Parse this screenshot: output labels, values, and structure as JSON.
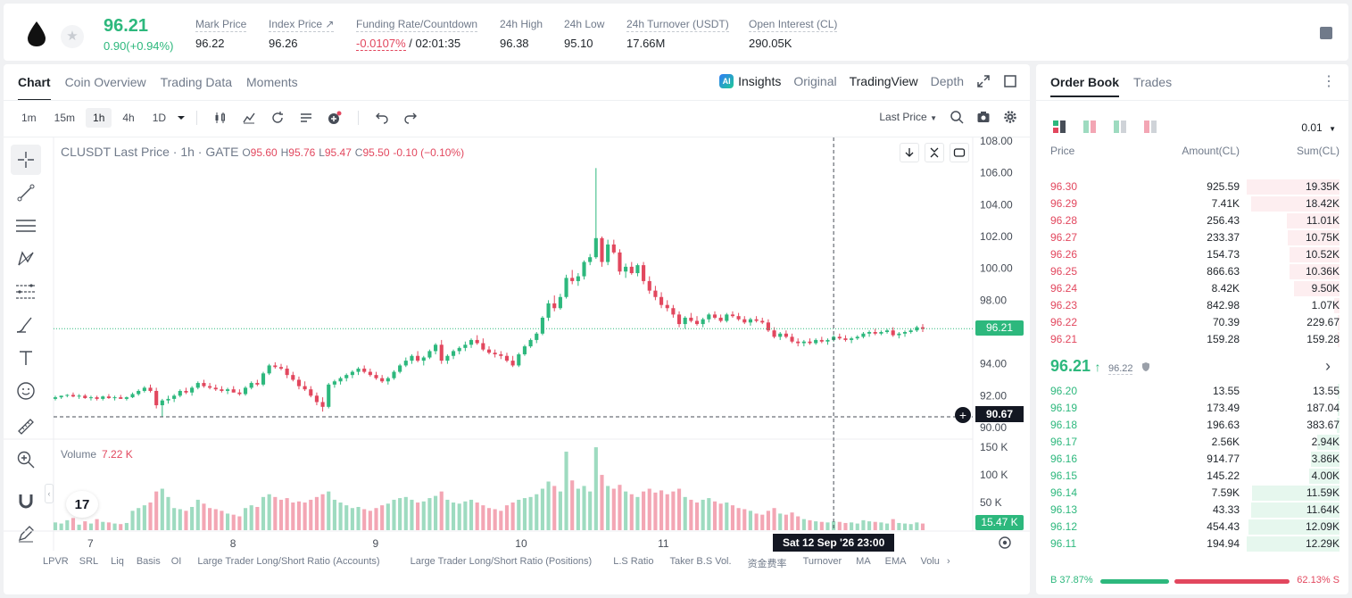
{
  "header": {
    "last_price": "96.21",
    "change": "0.90(+0.94%)",
    "stats": [
      {
        "label": "Mark Price",
        "value": "96.22"
      },
      {
        "label": "Index Price ↗",
        "value": "96.26"
      },
      {
        "label": "Funding Rate/Countdown",
        "value_neg": "-0.0107%",
        "value_rest": " / 02:01:35"
      },
      {
        "label": "24h High",
        "value": "96.38"
      },
      {
        "label": "24h Low",
        "value": "95.10"
      },
      {
        "label": "24h Turnover (USDT)",
        "value": "17.66M"
      },
      {
        "label": "Open Interest (CL)",
        "value": "290.05K"
      }
    ]
  },
  "chart_tabs": [
    "Chart",
    "Coin Overview",
    "Trading Data",
    "Moments"
  ],
  "view_tabs": {
    "insights": "Insights",
    "ai_badge": "AI",
    "original": "Original",
    "tradingview": "TradingView",
    "depth": "Depth"
  },
  "intervals": [
    "1m",
    "15m",
    "1h",
    "4h",
    "1D"
  ],
  "price_source": "Last Price",
  "symbol_line": {
    "title": "CLUSDT Last Price · 1h · GATE",
    "o_label": "O",
    "o": "95.60",
    "h_label": "H",
    "h": "95.76",
    "l_label": "L",
    "l": "95.47",
    "c_label": "C",
    "c": "95.50",
    "chg": "-0.10 (−0.10%)"
  },
  "volume_label": "Volume",
  "volume_value": "7.22 K",
  "tv_logo": "17",
  "crosshair": {
    "price": "90.67",
    "time": "Sat 12 Sep '26   23:00"
  },
  "current_price_tag": "96.21",
  "volume_tag": "15.47 K",
  "indicators": [
    "LPVR",
    "SRL",
    "Liq",
    "Basis",
    "OI",
    "Large Trader Long/Short Ratio (Accounts)",
    "Large Trader Long/Short Ratio (Positions)",
    "L.S Ratio",
    "Taker B.S Vol.",
    "资金费率",
    "Turnover",
    "MA",
    "EMA",
    "Volu"
  ],
  "chart_data": {
    "type": "candlestick",
    "title": "CLUSDT Last Price · 1h · GATE",
    "y_ticks": [
      "108.00",
      "106.00",
      "104.00",
      "102.00",
      "100.00",
      "98.00",
      "96.00",
      "94.00",
      "92.00",
      "90.00"
    ],
    "volume_ticks": [
      "150 K",
      "100 K",
      "50 K"
    ],
    "x_ticks": [
      "7",
      "8",
      "9",
      "10",
      "11",
      "12"
    ],
    "ylim": [
      89.5,
      108.2
    ],
    "volume_ylim": [
      0,
      155
    ],
    "candles": [
      [
        91.8,
        92.0,
        91.7,
        91.9,
        14
      ],
      [
        91.9,
        92.0,
        91.8,
        92.0,
        12
      ],
      [
        92.0,
        92.1,
        91.9,
        92.05,
        18
      ],
      [
        92.05,
        92.2,
        91.9,
        91.95,
        22
      ],
      [
        91.95,
        92.1,
        91.8,
        92.0,
        10
      ],
      [
        92.0,
        92.1,
        91.8,
        91.85,
        16
      ],
      [
        91.85,
        92.0,
        91.7,
        91.9,
        12
      ],
      [
        91.9,
        92.0,
        91.7,
        91.8,
        20
      ],
      [
        91.8,
        92.0,
        91.7,
        91.95,
        15
      ],
      [
        91.95,
        92.1,
        91.8,
        91.85,
        14
      ],
      [
        91.85,
        92.0,
        91.7,
        91.9,
        12
      ],
      [
        91.9,
        92.05,
        91.8,
        91.8,
        11
      ],
      [
        91.8,
        91.95,
        91.7,
        91.9,
        13
      ],
      [
        91.9,
        92.2,
        91.85,
        92.1,
        35
      ],
      [
        92.1,
        92.4,
        92.0,
        92.3,
        40
      ],
      [
        92.3,
        92.6,
        92.2,
        92.5,
        45
      ],
      [
        92.5,
        92.7,
        92.2,
        92.3,
        50
      ],
      [
        92.3,
        92.5,
        91.2,
        91.4,
        70
      ],
      [
        91.4,
        91.8,
        90.7,
        91.7,
        75
      ],
      [
        91.7,
        92.0,
        91.5,
        91.8,
        60
      ],
      [
        91.8,
        92.1,
        91.6,
        92.0,
        40
      ],
      [
        92.0,
        92.4,
        91.9,
        92.3,
        38
      ],
      [
        92.3,
        92.5,
        92.1,
        92.2,
        35
      ],
      [
        92.2,
        92.6,
        92.0,
        92.5,
        42
      ],
      [
        92.5,
        92.9,
        92.4,
        92.8,
        55
      ],
      [
        92.8,
        93.0,
        92.5,
        92.6,
        48
      ],
      [
        92.6,
        92.8,
        92.4,
        92.5,
        40
      ],
      [
        92.5,
        92.7,
        92.3,
        92.4,
        38
      ],
      [
        92.4,
        92.6,
        92.2,
        92.3,
        35
      ],
      [
        92.3,
        92.5,
        92.1,
        92.4,
        30
      ],
      [
        92.4,
        92.6,
        92.2,
        92.2,
        28
      ],
      [
        92.2,
        92.4,
        92.0,
        92.1,
        25
      ],
      [
        92.1,
        92.6,
        92.0,
        92.5,
        40
      ],
      [
        92.5,
        92.9,
        92.4,
        92.8,
        45
      ],
      [
        92.8,
        93.0,
        92.6,
        92.7,
        42
      ],
      [
        92.7,
        93.5,
        92.6,
        93.4,
        60
      ],
      [
        93.4,
        94.0,
        93.3,
        93.9,
        65
      ],
      [
        93.9,
        94.1,
        93.7,
        93.8,
        60
      ],
      [
        93.8,
        94.0,
        93.6,
        93.7,
        55
      ],
      [
        93.7,
        93.9,
        93.1,
        93.3,
        58
      ],
      [
        93.3,
        93.5,
        92.9,
        93.0,
        50
      ],
      [
        93.0,
        93.2,
        92.4,
        92.6,
        52
      ],
      [
        92.6,
        92.9,
        92.3,
        92.4,
        50
      ],
      [
        92.4,
        92.6,
        91.9,
        92.0,
        55
      ],
      [
        92.0,
        92.2,
        91.4,
        91.6,
        60
      ],
      [
        91.6,
        91.9,
        91.0,
        91.3,
        65
      ],
      [
        91.3,
        92.8,
        91.2,
        92.7,
        70
      ],
      [
        92.7,
        93.0,
        92.5,
        92.9,
        55
      ],
      [
        92.9,
        93.2,
        92.7,
        93.1,
        50
      ],
      [
        93.1,
        93.4,
        92.9,
        93.3,
        45
      ],
      [
        93.3,
        93.6,
        93.1,
        93.5,
        40
      ],
      [
        93.5,
        93.8,
        93.3,
        93.7,
        42
      ],
      [
        93.7,
        93.9,
        93.4,
        93.5,
        38
      ],
      [
        93.5,
        93.7,
        93.2,
        93.3,
        35
      ],
      [
        93.3,
        93.5,
        93.0,
        93.1,
        40
      ],
      [
        93.1,
        93.3,
        92.8,
        92.9,
        45
      ],
      [
        92.9,
        93.2,
        92.7,
        93.1,
        48
      ],
      [
        93.1,
        93.6,
        93.0,
        93.5,
        55
      ],
      [
        93.5,
        94.0,
        93.4,
        93.9,
        58
      ],
      [
        93.9,
        94.4,
        93.8,
        94.2,
        60
      ],
      [
        94.2,
        94.6,
        94.0,
        94.5,
        55
      ],
      [
        94.5,
        94.8,
        94.1,
        94.2,
        50
      ],
      [
        94.2,
        94.5,
        93.9,
        94.4,
        52
      ],
      [
        94.4,
        94.9,
        94.3,
        94.8,
        58
      ],
      [
        94.8,
        95.3,
        94.6,
        95.2,
        62
      ],
      [
        95.2,
        95.5,
        94.0,
        94.2,
        70
      ],
      [
        94.2,
        94.6,
        94.0,
        94.5,
        55
      ],
      [
        94.5,
        94.9,
        94.3,
        94.8,
        50
      ],
      [
        94.8,
        95.1,
        94.6,
        95.0,
        48
      ],
      [
        95.0,
        95.4,
        94.8,
        95.2,
        52
      ],
      [
        95.2,
        95.6,
        95.0,
        95.5,
        55
      ],
      [
        95.5,
        95.8,
        95.2,
        95.3,
        50
      ],
      [
        95.3,
        95.6,
        94.8,
        94.9,
        45
      ],
      [
        94.9,
        95.1,
        94.6,
        94.7,
        40
      ],
      [
        94.7,
        94.9,
        94.4,
        94.6,
        38
      ],
      [
        94.6,
        94.8,
        94.3,
        94.5,
        35
      ],
      [
        94.5,
        94.7,
        94.1,
        94.2,
        45
      ],
      [
        94.2,
        94.5,
        93.8,
        93.9,
        50
      ],
      [
        93.9,
        94.7,
        93.8,
        94.6,
        55
      ],
      [
        94.6,
        95.2,
        94.5,
        95.1,
        58
      ],
      [
        95.1,
        95.6,
        95.0,
        95.5,
        60
      ],
      [
        95.5,
        96.0,
        95.3,
        95.9,
        65
      ],
      [
        95.9,
        97.0,
        95.8,
        96.9,
        75
      ],
      [
        96.9,
        98.0,
        96.7,
        97.8,
        88
      ],
      [
        97.8,
        98.3,
        97.3,
        97.5,
        80
      ],
      [
        97.5,
        98.4,
        97.4,
        98.2,
        70
      ],
      [
        98.2,
        99.6,
        98.1,
        99.4,
        142
      ],
      [
        99.4,
        99.9,
        99.0,
        99.2,
        90
      ],
      [
        99.2,
        99.7,
        98.9,
        99.5,
        75
      ],
      [
        99.5,
        100.5,
        99.3,
        100.4,
        80
      ],
      [
        100.4,
        100.9,
        100.2,
        100.7,
        70
      ],
      [
        100.7,
        106.3,
        100.6,
        101.9,
        150
      ],
      [
        101.9,
        102.0,
        100.1,
        100.4,
        100
      ],
      [
        100.4,
        101.8,
        100.2,
        101.5,
        80
      ],
      [
        101.5,
        101.8,
        100.9,
        101.0,
        75
      ],
      [
        101.0,
        101.2,
        99.6,
        99.8,
        82
      ],
      [
        99.8,
        100.3,
        99.4,
        100.1,
        70
      ],
      [
        100.1,
        100.4,
        99.6,
        99.7,
        65
      ],
      [
        99.7,
        100.3,
        99.5,
        100.2,
        60
      ],
      [
        100.2,
        100.4,
        99.0,
        99.2,
        70
      ],
      [
        99.2,
        99.5,
        98.4,
        98.6,
        75
      ],
      [
        98.6,
        98.9,
        98.0,
        98.2,
        68
      ],
      [
        98.2,
        98.5,
        97.5,
        97.7,
        72
      ],
      [
        97.7,
        98.0,
        97.3,
        97.5,
        65
      ],
      [
        97.5,
        97.7,
        96.9,
        97.1,
        70
      ],
      [
        97.1,
        97.3,
        96.3,
        96.5,
        75
      ],
      [
        96.5,
        97.0,
        96.2,
        96.9,
        60
      ],
      [
        96.9,
        97.2,
        96.6,
        96.7,
        55
      ],
      [
        96.7,
        97.0,
        96.4,
        96.5,
        50
      ],
      [
        96.5,
        96.9,
        96.3,
        96.8,
        55
      ],
      [
        96.8,
        97.2,
        96.6,
        97.1,
        58
      ],
      [
        97.1,
        97.3,
        96.8,
        96.9,
        52
      ],
      [
        96.9,
        97.1,
        96.6,
        96.7,
        48
      ],
      [
        96.7,
        97.2,
        96.6,
        97.1,
        50
      ],
      [
        97.1,
        97.3,
        96.9,
        97.0,
        45
      ],
      [
        97.0,
        97.2,
        96.7,
        96.8,
        40
      ],
      [
        96.8,
        97.0,
        96.5,
        96.6,
        38
      ],
      [
        96.6,
        96.9,
        96.4,
        96.8,
        35
      ],
      [
        96.8,
        97.0,
        96.6,
        96.7,
        30
      ],
      [
        96.7,
        96.9,
        96.5,
        96.6,
        28
      ],
      [
        96.6,
        96.8,
        96.0,
        96.1,
        35
      ],
      [
        96.1,
        96.3,
        95.6,
        95.7,
        40
      ],
      [
        95.7,
        96.0,
        95.5,
        95.9,
        30
      ],
      [
        95.9,
        96.1,
        95.6,
        95.7,
        28
      ],
      [
        95.7,
        95.9,
        95.3,
        95.4,
        32
      ],
      [
        95.4,
        95.6,
        95.1,
        95.3,
        25
      ],
      [
        95.3,
        95.5,
        95.1,
        95.4,
        20
      ],
      [
        95.4,
        95.6,
        95.2,
        95.3,
        18
      ],
      [
        95.3,
        95.6,
        95.2,
        95.5,
        16
      ],
      [
        95.5,
        95.7,
        95.3,
        95.4,
        15
      ],
      [
        95.4,
        95.6,
        95.2,
        95.5,
        14
      ],
      [
        95.5,
        95.8,
        95.4,
        95.7,
        16
      ],
      [
        95.7,
        95.9,
        95.5,
        95.6,
        15
      ],
      [
        95.6,
        95.8,
        95.4,
        95.5,
        13
      ],
      [
        95.5,
        95.7,
        95.3,
        95.6,
        14
      ],
      [
        95.6,
        95.8,
        95.5,
        95.7,
        12
      ],
      [
        95.7,
        96.0,
        95.6,
        95.9,
        18
      ],
      [
        95.9,
        96.1,
        95.7,
        96.0,
        16
      ],
      [
        96.0,
        96.2,
        95.8,
        95.9,
        15
      ],
      [
        95.9,
        96.1,
        95.8,
        96.0,
        14
      ],
      [
        96.0,
        96.2,
        95.9,
        96.1,
        12
      ],
      [
        96.1,
        96.3,
        95.7,
        95.8,
        20
      ],
      [
        95.8,
        96.0,
        95.6,
        95.9,
        13
      ],
      [
        95.9,
        96.1,
        95.7,
        96.0,
        12
      ],
      [
        96.0,
        96.2,
        95.9,
        96.1,
        11
      ],
      [
        96.1,
        96.4,
        96.0,
        96.3,
        14
      ],
      [
        96.3,
        96.5,
        96.0,
        96.2,
        12
      ]
    ],
    "crosshair_index": 131
  },
  "orderbook": {
    "tabs": [
      "Order Book",
      "Trades"
    ],
    "precision": "0.01",
    "headers": {
      "price": "Price",
      "amount": "Amount(CL)",
      "sum": "Sum(CL)"
    },
    "asks": [
      {
        "price": "96.30",
        "amount": "925.59",
        "sum": "19.35K",
        "depth": 1.0
      },
      {
        "price": "96.29",
        "amount": "7.41K",
        "sum": "18.42K",
        "depth": 0.95
      },
      {
        "price": "96.28",
        "amount": "256.43",
        "sum": "11.01K",
        "depth": 0.57
      },
      {
        "price": "96.27",
        "amount": "233.37",
        "sum": "10.75K",
        "depth": 0.56
      },
      {
        "price": "96.26",
        "amount": "154.73",
        "sum": "10.52K",
        "depth": 0.54
      },
      {
        "price": "96.25",
        "amount": "866.63",
        "sum": "10.36K",
        "depth": 0.54
      },
      {
        "price": "96.24",
        "amount": "8.42K",
        "sum": "9.50K",
        "depth": 0.49
      },
      {
        "price": "96.23",
        "amount": "842.98",
        "sum": "1.07K",
        "depth": 0.06
      },
      {
        "price": "96.22",
        "amount": "70.39",
        "sum": "229.67",
        "depth": 0.012
      },
      {
        "price": "96.21",
        "amount": "159.28",
        "sum": "159.28",
        "depth": 0.008
      }
    ],
    "mid_price": "96.21",
    "mid_mark": "96.22",
    "bids": [
      {
        "price": "96.20",
        "amount": "13.55",
        "sum": "13.55",
        "depth": 0.001
      },
      {
        "price": "96.19",
        "amount": "173.49",
        "sum": "187.04",
        "depth": 0.015
      },
      {
        "price": "96.18",
        "amount": "196.63",
        "sum": "383.67",
        "depth": 0.03
      },
      {
        "price": "96.17",
        "amount": "2.56K",
        "sum": "2.94K",
        "depth": 0.24
      },
      {
        "price": "96.16",
        "amount": "914.77",
        "sum": "3.86K",
        "depth": 0.31
      },
      {
        "price": "96.15",
        "amount": "145.22",
        "sum": "4.00K",
        "depth": 0.33
      },
      {
        "price": "96.14",
        "amount": "7.59K",
        "sum": "11.59K",
        "depth": 0.94
      },
      {
        "price": "96.13",
        "amount": "43.33",
        "sum": "11.64K",
        "depth": 0.95
      },
      {
        "price": "96.12",
        "amount": "454.43",
        "sum": "12.09K",
        "depth": 0.98
      },
      {
        "price": "96.11",
        "amount": "194.94",
        "sum": "12.29K",
        "depth": 1.0
      }
    ],
    "buy_ratio": "B 37.87%",
    "sell_ratio": "62.13% S",
    "buy_fraction": 0.3787
  },
  "colors": {
    "up": "#2db87d",
    "down": "#e2475e",
    "vol_up": "#9edbc0",
    "vol_down": "#f3a6b4"
  }
}
